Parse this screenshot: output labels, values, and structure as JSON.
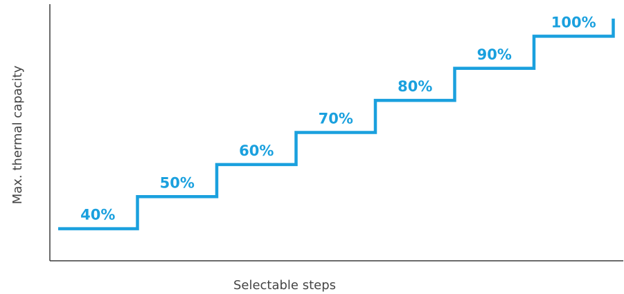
{
  "chart_data": {
    "type": "line",
    "style": "step",
    "title": "",
    "xlabel": "Selectable steps",
    "ylabel": "Max. thermal capacity",
    "categories": [
      "40%",
      "50%",
      "60%",
      "70%",
      "80%",
      "90%",
      "100%"
    ],
    "values": [
      40,
      50,
      60,
      70,
      80,
      90,
      100
    ],
    "ylim": [
      30,
      110
    ],
    "grid": false,
    "legend": "none",
    "ticks_visible": false,
    "colors": {
      "series": "#1aa0de",
      "axis": "#3a3a3a",
      "axis_title": "#444444"
    }
  }
}
